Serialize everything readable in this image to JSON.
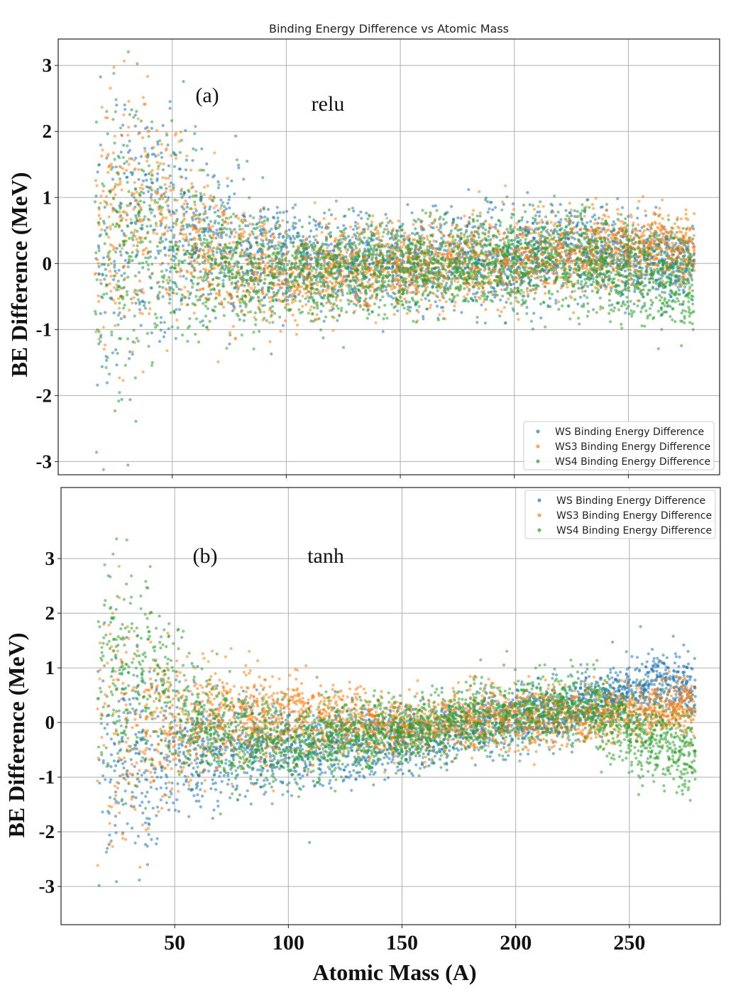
{
  "chart_data": [
    {
      "type": "scatter",
      "panel": "a",
      "title": "Binding Energy Difference vs Atomic Mass",
      "panel_label": "(a)",
      "activation": "relu",
      "xlabel": "",
      "ylabel": "BE Difference  (MeV)",
      "xlim": [
        0,
        290
      ],
      "ylim": [
        -3.2,
        3.4
      ],
      "yticks": [
        3,
        2,
        1,
        0,
        -1,
        -2,
        -3
      ],
      "ytick_labels": [
        "3",
        "2",
        "1",
        "0",
        "-1",
        "-2",
        "-3"
      ],
      "xticks": [
        50,
        100,
        150,
        200,
        250
      ],
      "grid": true,
      "legend_position": "bottom-right",
      "series": [
        {
          "name": "WS   Binding Energy Difference",
          "color": "#1f77b4"
        },
        {
          "name": "WS3 Binding Energy Difference",
          "color": "#ff7f0e"
        },
        {
          "name": "WS4 Binding Energy Difference",
          "color": "#2ca02c"
        }
      ],
      "x_range": [
        16,
        279
      ],
      "trend": {
        "WS": {
          "at_A": [
            16,
            40,
            60,
            80,
            100,
            150,
            200,
            230,
            260,
            279
          ],
          "mean": [
            0.3,
            0.6,
            0.4,
            0.2,
            0.0,
            0.0,
            0.1,
            0.2,
            0.0,
            0.0
          ],
          "spread": [
            1.6,
            1.3,
            0.9,
            0.7,
            0.5,
            0.45,
            0.45,
            0.45,
            0.4,
            0.35
          ]
        },
        "WS3": {
          "at_A": [
            16,
            40,
            60,
            80,
            100,
            150,
            200,
            230,
            260,
            279
          ],
          "mean": [
            0.4,
            0.8,
            0.3,
            0.0,
            -0.2,
            -0.05,
            0.05,
            0.15,
            0.3,
            0.2
          ],
          "spread": [
            1.6,
            1.2,
            0.8,
            0.6,
            0.45,
            0.4,
            0.4,
            0.4,
            0.35,
            0.35
          ]
        },
        "WS4": {
          "at_A": [
            16,
            40,
            60,
            80,
            100,
            150,
            200,
            230,
            260,
            279
          ],
          "mean": [
            0.0,
            0.3,
            0.1,
            -0.1,
            -0.15,
            -0.1,
            0.05,
            0.1,
            -0.2,
            -0.3
          ],
          "spread": [
            1.7,
            1.3,
            0.8,
            0.6,
            0.45,
            0.45,
            0.45,
            0.5,
            0.5,
            0.45
          ]
        }
      }
    },
    {
      "type": "scatter",
      "panel": "b",
      "title": "",
      "panel_label": "(b)",
      "activation": "tanh",
      "xlabel": "Atomic Mass (A)",
      "ylabel": "BE Difference  (MeV)",
      "xlim": [
        0,
        290
      ],
      "ylim": [
        -3.7,
        4.3
      ],
      "yticks": [
        3,
        2,
        1,
        0,
        -1,
        -2,
        -3
      ],
      "ytick_labels": [
        "3",
        "2",
        "1",
        "0",
        "-1",
        "-2",
        "-3"
      ],
      "xticks": [
        50,
        100,
        150,
        200,
        250
      ],
      "xtick_labels": [
        "50",
        "100",
        "150",
        "200",
        "250"
      ],
      "grid": true,
      "legend_position": "top-right",
      "series": [
        {
          "name": "WS   Binding Energy Difference",
          "color": "#1f77b4"
        },
        {
          "name": "WS3 Binding Energy Difference",
          "color": "#ff7f0e"
        },
        {
          "name": "WS4 Binding Energy Difference",
          "color": "#2ca02c"
        }
      ],
      "x_range": [
        16,
        279
      ],
      "trend": {
        "WS": {
          "at_A": [
            16,
            40,
            60,
            80,
            100,
            150,
            200,
            230,
            260,
            279
          ],
          "mean": [
            -0.8,
            -0.7,
            -0.5,
            -0.5,
            -0.5,
            -0.3,
            0.1,
            0.3,
            0.7,
            0.6
          ],
          "spread": [
            1.5,
            1.0,
            0.7,
            0.6,
            0.5,
            0.4,
            0.35,
            0.35,
            0.35,
            0.4
          ]
        },
        "WS3": {
          "at_A": [
            16,
            40,
            60,
            80,
            100,
            150,
            200,
            230,
            260,
            279
          ],
          "mean": [
            0.2,
            0.0,
            0.1,
            0.1,
            0.1,
            -0.1,
            0.1,
            0.1,
            0.2,
            0.3
          ],
          "spread": [
            1.5,
            1.1,
            0.7,
            0.6,
            0.5,
            0.35,
            0.35,
            0.35,
            0.3,
            0.4
          ]
        },
        "WS4": {
          "at_A": [
            16,
            40,
            60,
            80,
            100,
            150,
            200,
            230,
            260,
            279
          ],
          "mean": [
            1.0,
            0.8,
            0.0,
            -0.3,
            -0.4,
            -0.2,
            0.2,
            0.3,
            -0.3,
            -0.6
          ],
          "spread": [
            1.6,
            1.2,
            0.7,
            0.6,
            0.5,
            0.4,
            0.4,
            0.45,
            0.5,
            0.5
          ]
        }
      }
    }
  ],
  "sample_count_per_series": 2600
}
